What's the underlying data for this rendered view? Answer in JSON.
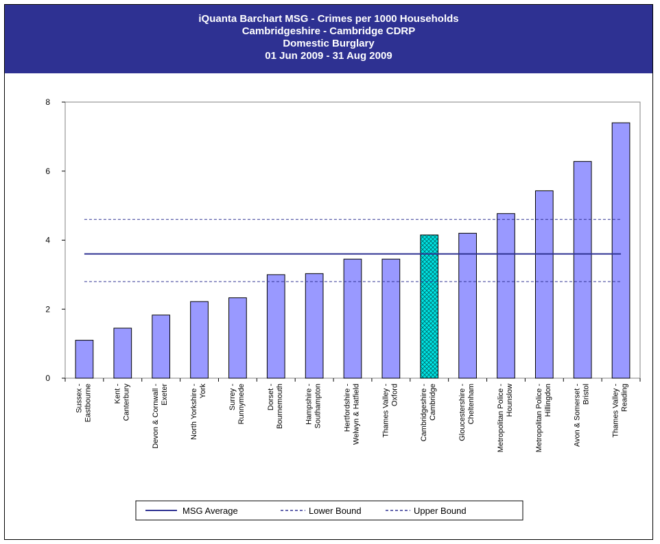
{
  "header": {
    "line1": "iQuanta Barchart MSG - Crimes per 1000 Households",
    "line2": "Cambridgeshire - Cambridge CDRP",
    "line3": "Domestic Burglary",
    "line4": "01 Jun 2009 - 31 Aug 2009"
  },
  "chart_data": {
    "type": "bar",
    "title": "iQuanta Barchart MSG - Crimes per 1000 Households",
    "subtitle": [
      "Cambridgeshire - Cambridge CDRP",
      "Domestic Burglary",
      "01 Jun 2009 - 31 Aug 2009"
    ],
    "categories": [
      [
        "Sussex -",
        "Eastbourne"
      ],
      [
        "Kent -",
        "Canterbury"
      ],
      [
        "Devon & Cornwall -",
        "Exeter"
      ],
      [
        "North Yorkshire -",
        "York"
      ],
      [
        "Surrey -",
        "Runnymede"
      ],
      [
        "Dorset -",
        "Bournemouth"
      ],
      [
        "Hampshire -",
        "Southampton"
      ],
      [
        "Hertfordshire -",
        "Welwyn & Hatfield"
      ],
      [
        "Thames Valley -",
        "Oxford"
      ],
      [
        "Cambridgeshire -",
        "Cambridge"
      ],
      [
        "Gloucestershire -",
        "Cheltenham"
      ],
      [
        "Metropolitan Police -",
        "Hounslow"
      ],
      [
        "Metropolitan Police -",
        "Hillingdon"
      ],
      [
        "Avon & Somerset -",
        "Bristol"
      ],
      [
        "Thames Valley -",
        "Reading"
      ]
    ],
    "values": [
      1.1,
      1.45,
      1.83,
      2.22,
      2.33,
      3.0,
      3.03,
      3.45,
      3.45,
      4.15,
      4.2,
      4.77,
      5.43,
      6.28,
      7.4
    ],
    "highlight_index": 9,
    "ylim": [
      0,
      8
    ],
    "yticks": [
      "0",
      "2",
      "4",
      "6",
      "8"
    ],
    "lines": [
      {
        "name": "MSG Average",
        "value": 3.6,
        "style": "solid"
      },
      {
        "name": "Lower Bound",
        "value": 2.8,
        "style": "dashed"
      },
      {
        "name": "Upper Bound",
        "value": 4.6,
        "style": "dashed"
      }
    ],
    "legend": "bottom",
    "colors": {
      "bar": "#9999ff",
      "bar_stroke": "#000000",
      "highlight": "#00e6e6",
      "line": "#2e3192",
      "header": "#2e3192"
    }
  }
}
